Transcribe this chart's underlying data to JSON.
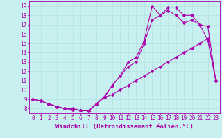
{
  "xlabel": "Windchill (Refroidissement éolien,°C)",
  "bg_color": "#c8f0f0",
  "line_color": "#aa00aa",
  "grid_color": "#b0dede",
  "xlim": [
    -0.5,
    23.5
  ],
  "ylim": [
    7.5,
    19.5
  ],
  "xticks": [
    0,
    1,
    2,
    3,
    4,
    5,
    6,
    7,
    8,
    9,
    10,
    11,
    12,
    13,
    14,
    15,
    16,
    17,
    18,
    19,
    20,
    21,
    22,
    23
  ],
  "yticks": [
    8,
    9,
    10,
    11,
    12,
    13,
    14,
    15,
    16,
    17,
    18,
    19
  ],
  "line1_x": [
    0,
    1,
    2,
    3,
    4,
    5,
    6,
    7,
    8,
    9,
    10,
    11,
    12,
    13,
    14,
    15,
    16,
    17,
    18,
    19,
    20,
    21,
    22,
    23
  ],
  "line1_y": [
    9.0,
    8.8,
    8.5,
    8.2,
    8.0,
    8.0,
    7.8,
    7.75,
    8.5,
    9.3,
    10.5,
    11.5,
    12.5,
    13.0,
    15.0,
    17.5,
    18.0,
    18.5,
    18.0,
    17.2,
    17.5,
    17.0,
    15.3,
    11.0
  ],
  "line2_x": [
    0,
    1,
    2,
    3,
    4,
    5,
    6,
    7,
    8,
    9,
    10,
    11,
    12,
    13,
    14,
    15,
    16,
    17,
    18,
    19,
    20,
    21,
    22,
    23
  ],
  "line2_y": [
    9.0,
    8.8,
    8.5,
    8.2,
    8.0,
    7.9,
    7.8,
    7.75,
    8.5,
    9.2,
    10.5,
    11.5,
    13.0,
    13.5,
    15.3,
    19.0,
    18.0,
    18.8,
    18.8,
    18.0,
    18.0,
    17.0,
    16.8,
    11.0
  ],
  "line3_x": [
    0,
    1,
    2,
    3,
    4,
    5,
    6,
    7,
    8,
    9,
    10,
    11,
    12,
    13,
    14,
    15,
    16,
    17,
    18,
    19,
    20,
    21,
    22,
    23
  ],
  "line3_y": [
    9.0,
    8.8,
    8.5,
    8.2,
    8.0,
    7.9,
    7.8,
    7.75,
    8.5,
    9.2,
    9.5,
    10.0,
    10.5,
    11.0,
    11.5,
    12.0,
    12.5,
    13.0,
    13.5,
    14.0,
    14.5,
    15.0,
    15.5,
    11.0
  ],
  "marker": "D",
  "markersize": 1.8,
  "linewidth": 0.8,
  "fontsize_tick": 5.5,
  "fontsize_label": 6.5
}
